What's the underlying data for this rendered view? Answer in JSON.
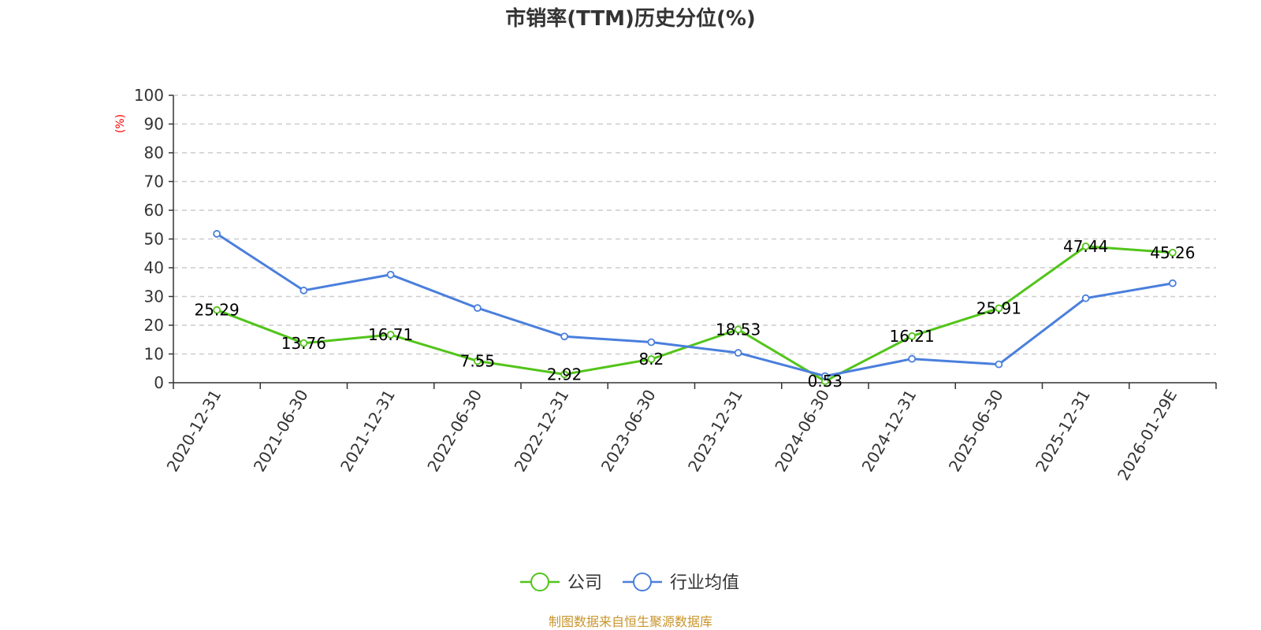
{
  "chart_data": {
    "type": "line",
    "title": "市销率(TTM)历史分位(%)",
    "ylabel": "(%)",
    "ylim": [
      0,
      100
    ],
    "yticks": [
      0,
      10,
      20,
      30,
      40,
      50,
      60,
      70,
      80,
      90,
      100
    ],
    "grid": true,
    "legend_position": "bottom-center",
    "categories": [
      "2020-12-31",
      "2021-06-30",
      "2021-12-31",
      "2022-06-30",
      "2022-12-31",
      "2023-06-30",
      "2023-12-31",
      "2024-06-30",
      "2024-12-31",
      "2025-06-30",
      "2025-12-31",
      "2026-01-29E"
    ],
    "series": [
      {
        "name": "公司",
        "color": "#52c41a",
        "values": [
          25.29,
          13.76,
          16.71,
          7.55,
          2.92,
          8.2,
          18.53,
          0.53,
          16.21,
          25.91,
          47.44,
          45.26
        ],
        "labels": [
          "25.29",
          "13.76",
          "16.71",
          "7.55",
          "2.92",
          "8.2",
          "18.53",
          "0.53",
          "16.21",
          "25.91",
          "47.44",
          "45.26"
        ]
      },
      {
        "name": "行业均值",
        "color": "#4a7fdc",
        "values": [
          51.8,
          32.1,
          37.6,
          26.0,
          16.1,
          14.1,
          10.4,
          2.3,
          8.3,
          6.4,
          29.4,
          34.6
        ]
      }
    ]
  },
  "source_note": "制图数据来自恒生聚源数据库"
}
